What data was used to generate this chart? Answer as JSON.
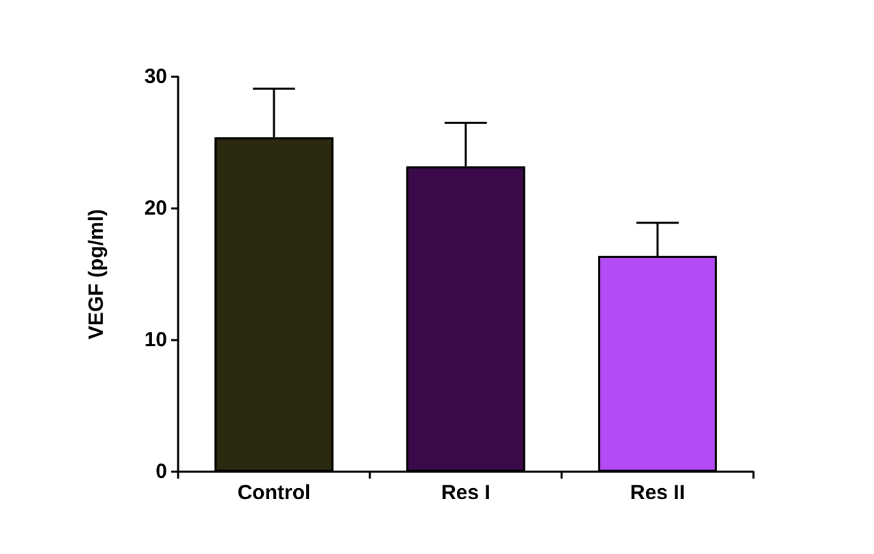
{
  "chart_data": {
    "type": "bar",
    "ylabel": "VEGF (pg/ml)",
    "categories": [
      "Control",
      "Res I",
      "Res II"
    ],
    "values": [
      25.4,
      23.2,
      16.4
    ],
    "colors": [
      "#2b2a10",
      "#3a0a4a",
      "#b44cf5"
    ],
    "errors": [
      [
        25.4,
        29.1
      ],
      [
        23.2,
        26.5
      ],
      [
        16.4,
        18.9
      ]
    ],
    "ylim": [
      0,
      30
    ],
    "yticks": [
      0,
      10,
      20,
      30
    ],
    "grid": false
  }
}
